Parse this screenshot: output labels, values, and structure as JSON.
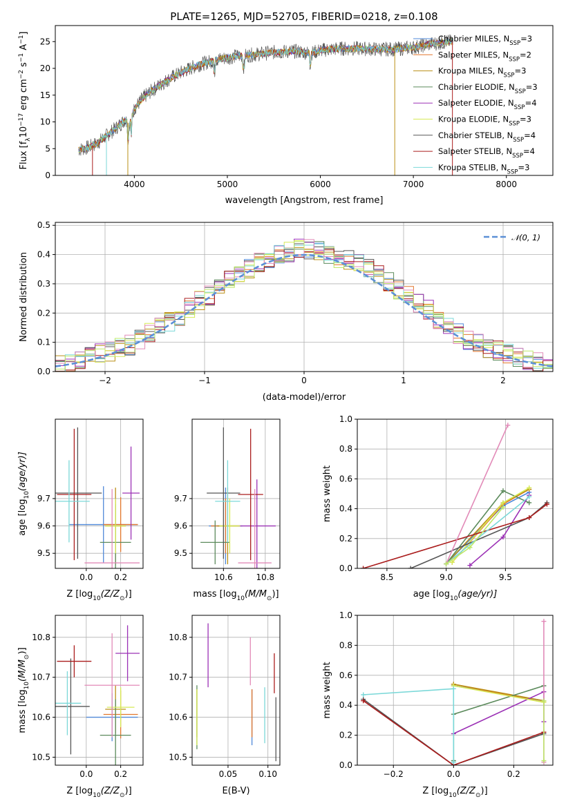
{
  "figure": {
    "title": "PLATE=1265, MJD=52705, FIBERID=0218, z=0.108"
  },
  "colors": {
    "chabrier_miles": "#4f88d8",
    "salpeter_miles": "#e2762b",
    "kroupa_miles": "#ba8f15",
    "chabrier_elodie": "#5b8a5b",
    "salpeter_elodie": "#9b30b5",
    "kroupa_elodie": "#d6ea55",
    "chabrier_stelib": "#555555",
    "salpeter_stelib": "#aa1c1c",
    "kroupa_stelib": "#7ad8d8",
    "pink": "#e28ab8",
    "lime": "#bde86a",
    "gaussian": "#5b8fd6"
  },
  "chart_data": [
    {
      "id": "spectrum",
      "type": "line",
      "title": "PLATE=1265, MJD=52705, FIBERID=0218, z=0.108",
      "xlabel": "wavelength [Angstrom, rest frame]",
      "ylabel_main": "Flux [f",
      "ylabel_sub": "λ",
      "ylabel_mid": "10",
      "ylabel_sup": "−17",
      "ylabel_rest": " erg cm",
      "ylabel_sup2": "−2",
      "ylabel_rest2": " s",
      "ylabel_sup3": "−1",
      "ylabel_rest3": " A",
      "ylabel_sup4": "−1",
      "ylabel_end": "]",
      "xlim": [
        3150,
        8500
      ],
      "ylim": [
        0,
        28
      ],
      "xticks": [
        4000,
        5000,
        6000,
        7000,
        8000
      ],
      "yticks": [
        0,
        5,
        10,
        15,
        20,
        25
      ],
      "grid": false,
      "legend_position": "top-right",
      "continuum": {
        "x": [
          3400,
          3500,
          3600,
          3700,
          3800,
          3900,
          3950,
          4000,
          4100,
          4200,
          4300,
          4400,
          4500,
          4600,
          4700,
          4800,
          4900,
          5000,
          5100,
          5200,
          5300,
          5400,
          5500,
          5600,
          5700,
          5800,
          5900,
          6000,
          6200,
          6400,
          6600,
          6800,
          7000,
          7200,
          7400
        ],
        "y": [
          4.8,
          5.2,
          6.0,
          7.4,
          8.8,
          10.4,
          9.5,
          12.5,
          14.6,
          16.0,
          17.2,
          18.3,
          19.2,
          20.0,
          20.7,
          21.2,
          21.7,
          22.0,
          22.3,
          22.4,
          22.6,
          22.8,
          23.0,
          23.1,
          23.2,
          23.1,
          22.8,
          23.4,
          23.7,
          23.7,
          23.6,
          23.6,
          23.9,
          24.6,
          25.0
        ]
      },
      "legend": [
        {
          "label": "Chabrier MILES, N",
          "sub": "SSP",
          "tail": "=3",
          "color_key": "chabrier_miles"
        },
        {
          "label": "Salpeter MILES, N",
          "sub": "SSP",
          "tail": "=2",
          "color_key": "salpeter_miles"
        },
        {
          "label": "Kroupa MILES, N",
          "sub": "SSP",
          "tail": "=3",
          "color_key": "kroupa_miles"
        },
        {
          "label": "Chabrier ELODIE, N",
          "sub": "SSP",
          "tail": "=3",
          "color_key": "chabrier_elodie"
        },
        {
          "label": "Salpeter ELODIE, N",
          "sub": "SSP",
          "tail": "=4",
          "color_key": "salpeter_elodie"
        },
        {
          "label": "Kroupa ELODIE, N",
          "sub": "SSP",
          "tail": "=3",
          "color_key": "kroupa_elodie"
        },
        {
          "label": "Chabrier STELIB, N",
          "sub": "SSP",
          "tail": "=4",
          "color_key": "chabrier_stelib"
        },
        {
          "label": "Salpeter STELIB, N",
          "sub": "SSP",
          "tail": "=4",
          "color_key": "salpeter_stelib"
        },
        {
          "label": "Kroupa STELIB, N",
          "sub": "SSP",
          "tail": "=3",
          "color_key": "kroupa_stelib"
        }
      ]
    },
    {
      "id": "residuals",
      "type": "histogram",
      "xlabel": "(data-model)/error",
      "ylabel": "Normed distribution",
      "xlim": [
        -2.5,
        2.5
      ],
      "ylim": [
        0,
        0.51
      ],
      "xticks": [
        -2,
        -1,
        0,
        1,
        2
      ],
      "yticks": [
        0.0,
        0.1,
        0.2,
        0.3,
        0.4,
        0.5
      ],
      "grid": true,
      "bins": [
        -2.5,
        -2.4,
        -2.3,
        -2.2,
        -2.1,
        -2.0,
        -1.9,
        -1.8,
        -1.7,
        -1.6,
        -1.5,
        -1.4,
        -1.3,
        -1.2,
        -1.1,
        -1.0,
        -0.9,
        -0.8,
        -0.7,
        -0.6,
        -0.5,
        -0.4,
        -0.3,
        -0.2,
        -0.1,
        0.0,
        0.1,
        0.2,
        0.3,
        0.4,
        0.5,
        0.6,
        0.7,
        0.8,
        0.9,
        1.0,
        1.1,
        1.2,
        1.3,
        1.4,
        1.5,
        1.6,
        1.7,
        1.8,
        1.9,
        2.0,
        2.1,
        2.2,
        2.3,
        2.4,
        2.5
      ],
      "base_heights": [
        0.02,
        0.03,
        0.04,
        0.05,
        0.06,
        0.07,
        0.08,
        0.09,
        0.11,
        0.13,
        0.15,
        0.17,
        0.19,
        0.22,
        0.24,
        0.26,
        0.29,
        0.31,
        0.33,
        0.35,
        0.37,
        0.38,
        0.4,
        0.41,
        0.42,
        0.42,
        0.41,
        0.4,
        0.39,
        0.38,
        0.37,
        0.35,
        0.33,
        0.31,
        0.28,
        0.26,
        0.23,
        0.21,
        0.18,
        0.15,
        0.13,
        0.11,
        0.1,
        0.08,
        0.07,
        0.06,
        0.05,
        0.04,
        0.03,
        0.02
      ],
      "gaussian_legend": "𝒩(0, 1)",
      "series_color_keys": [
        "chabrier_miles",
        "salpeter_miles",
        "kroupa_miles",
        "chabrier_elodie",
        "salpeter_elodie",
        "kroupa_elodie",
        "chabrier_stelib",
        "salpeter_stelib",
        "kroupa_stelib",
        "pink",
        "lime"
      ]
    },
    {
      "id": "age_vs_Z",
      "type": "errorbar",
      "xlabel": "Z [log",
      "xlabel_sub": "10",
      "xlabel_rest": "(Z/Z",
      "xlabel_sub2": "⊙",
      "xlabel_end": ")]",
      "ylabel": "age  [log",
      "ylabel_sub": "10",
      "ylabel_rest": "(age/yr)]",
      "xlim": [
        -0.18,
        0.33
      ],
      "ylim": [
        9.445,
        9.99
      ],
      "xticks": [
        0.0,
        0.2
      ],
      "yticks": [
        9.5,
        9.6,
        9.7
      ],
      "grid": true,
      "points": [
        {
          "x": 0.1,
          "xerr": 0.2,
          "y": 9.605,
          "yerr": 0.14,
          "color_key": "chabrier_miles"
        },
        {
          "x": 0.2,
          "xerr": 0.1,
          "y": 9.605,
          "yerr": 0.1,
          "color_key": "salpeter_miles"
        },
        {
          "x": 0.17,
          "xerr": 0.06,
          "y": 9.6,
          "yerr": 0.14,
          "color_key": "kroupa_miles"
        },
        {
          "x": 0.17,
          "xerr": 0.09,
          "y": 9.54,
          "yerr": 0.14,
          "color_key": "chabrier_elodie"
        },
        {
          "x": 0.26,
          "xerr": 0.05,
          "y": 9.72,
          "yerr": 0.17,
          "color_key": "salpeter_elodie"
        },
        {
          "x": 0.17,
          "xerr": 0.06,
          "y": 9.6,
          "yerr": 0.1,
          "color_key": "kroupa_elodie"
        },
        {
          "x": -0.05,
          "xerr": 0.14,
          "y": 9.72,
          "yerr": 0.24,
          "color_key": "chabrier_stelib"
        },
        {
          "x": -0.07,
          "xerr": 0.1,
          "y": 9.715,
          "yerr": 0.24,
          "color_key": "salpeter_stelib"
        },
        {
          "x": -0.1,
          "xerr": 0.12,
          "y": 9.69,
          "yerr": 0.15,
          "color_key": "kroupa_stelib"
        },
        {
          "x": 0.15,
          "xerr": 0.16,
          "y": 9.465,
          "yerr": 0.27,
          "color_key": "pink"
        }
      ]
    },
    {
      "id": "age_vs_mass",
      "type": "errorbar",
      "xlabel": "mass [log",
      "xlabel_sub": "10",
      "xlabel_rest": "(M/M",
      "xlabel_sub2": "⊙",
      "xlabel_end": ")]",
      "xlim": [
        10.45,
        10.87
      ],
      "ylim": [
        9.445,
        9.99
      ],
      "xticks": [
        10.6,
        10.8
      ],
      "yticks": [
        9.5,
        9.6,
        9.7
      ],
      "grid": true,
      "points": [
        {
          "x": 10.61,
          "xerr": 0.08,
          "y": 9.6,
          "yerr": 0.14,
          "color_key": "chabrier_miles"
        },
        {
          "x": 10.61,
          "xerr": 0.07,
          "y": 9.6,
          "yerr": 0.1,
          "color_key": "salpeter_miles"
        },
        {
          "x": 10.62,
          "xerr": 0.05,
          "y": 9.6,
          "yerr": 0.14,
          "color_key": "kroupa_miles"
        },
        {
          "x": 10.56,
          "xerr": 0.07,
          "y": 9.54,
          "yerr": 0.08,
          "color_key": "chabrier_elodie"
        },
        {
          "x": 10.76,
          "xerr": 0.09,
          "y": 9.6,
          "yerr": 0.17,
          "color_key": "salpeter_elodie"
        },
        {
          "x": 10.63,
          "xerr": 0.05,
          "y": 9.6,
          "yerr": 0.1,
          "color_key": "kroupa_elodie"
        },
        {
          "x": 10.6,
          "xerr": 0.08,
          "y": 9.72,
          "yerr": 0.24,
          "color_key": "chabrier_stelib"
        },
        {
          "x": 10.73,
          "xerr": 0.06,
          "y": 9.715,
          "yerr": 0.24,
          "color_key": "salpeter_stelib"
        },
        {
          "x": 10.62,
          "xerr": 0.06,
          "y": 9.69,
          "yerr": 0.15,
          "color_key": "kroupa_stelib"
        },
        {
          "x": 10.75,
          "xerr": 0.08,
          "y": 9.465,
          "yerr": 0.27,
          "color_key": "pink"
        }
      ]
    },
    {
      "id": "weight_vs_age",
      "type": "line",
      "xlabel": "age  [log",
      "xlabel_sub": "10",
      "xlabel_rest": "(age/yr)]",
      "ylabel": "mass weight",
      "xlim": [
        8.25,
        9.9
      ],
      "ylim": [
        0,
        1.0
      ],
      "xticks": [
        8.5,
        9.0,
        9.5
      ],
      "yticks": [
        0.0,
        0.2,
        0.4,
        0.6,
        0.8,
        1.0
      ],
      "grid": true,
      "series": [
        {
          "x": [
            9.0,
            9.48,
            9.7
          ],
          "y": [
            0.03,
            0.42,
            0.51
          ],
          "color_key": "chabrier_miles"
        },
        {
          "x": [
            9.05,
            9.48,
            9.7
          ],
          "y": [
            0.04,
            0.43,
            0.53
          ],
          "color_key": "salpeter_miles"
        },
        {
          "x": [
            9.0,
            9.48,
            9.7
          ],
          "y": [
            0.03,
            0.44,
            0.53
          ],
          "color_key": "kroupa_miles"
        },
        {
          "x": [
            9.0,
            9.48,
            9.7
          ],
          "y": [
            0.03,
            0.52,
            0.44
          ],
          "color_key": "chabrier_elodie"
        },
        {
          "x": [
            9.2,
            9.48,
            9.7
          ],
          "y": [
            0.02,
            0.21,
            0.49
          ],
          "color_key": "salpeter_elodie"
        },
        {
          "x": [
            9.05,
            9.48,
            9.7
          ],
          "y": [
            0.04,
            0.44,
            0.54
          ],
          "color_key": "kroupa_elodie"
        },
        {
          "x": [
            8.7,
            9.7,
            9.85
          ],
          "y": [
            0.0,
            0.34,
            0.44
          ],
          "color_key": "chabrier_stelib"
        },
        {
          "x": [
            8.3,
            9.7,
            9.85
          ],
          "y": [
            0.0,
            0.34,
            0.43
          ],
          "color_key": "salpeter_stelib"
        },
        {
          "x": [
            9.0,
            9.7
          ],
          "y": [
            0.03,
            0.48
          ],
          "color_key": "kroupa_stelib"
        },
        {
          "x": [
            9.0,
            9.52
          ],
          "y": [
            0.03,
            0.96
          ],
          "color_key": "pink"
        },
        {
          "x": [
            9.0,
            9.2,
            9.48
          ],
          "y": [
            0.03,
            0.14,
            0.41
          ],
          "color_key": "lime"
        }
      ]
    },
    {
      "id": "mass_vs_Z",
      "type": "errorbar",
      "xlabel": "Z [log",
      "xlabel_sub": "10",
      "xlabel_rest": "(Z/Z",
      "xlabel_sub2": "⊙",
      "xlabel_end": ")]",
      "ylabel": "mass [log",
      "ylabel_sub": "10",
      "ylabel_rest": "(M/M",
      "ylabel_sub2": "⊙",
      "ylabel_end": ")]",
      "xlim": [
        -0.18,
        0.33
      ],
      "ylim": [
        10.48,
        10.855
      ],
      "xticks": [
        0.0,
        0.2
      ],
      "yticks": [
        10.5,
        10.6,
        10.7,
        10.8
      ],
      "grid": true,
      "points": [
        {
          "x": 0.15,
          "xerr": 0.15,
          "y": 10.6,
          "yerr": 0.06,
          "color_key": "chabrier_miles"
        },
        {
          "x": 0.2,
          "xerr": 0.1,
          "y": 10.607,
          "yerr": 0.06,
          "color_key": "salpeter_miles"
        },
        {
          "x": 0.17,
          "xerr": 0.06,
          "y": 10.62,
          "yerr": 0.06,
          "color_key": "kroupa_miles"
        },
        {
          "x": 0.17,
          "xerr": 0.09,
          "y": 10.555,
          "yerr": 0.09,
          "color_key": "chabrier_elodie"
        },
        {
          "x": 0.24,
          "xerr": 0.07,
          "y": 10.76,
          "yerr": 0.07,
          "color_key": "salpeter_elodie"
        },
        {
          "x": 0.2,
          "xerr": 0.08,
          "y": 10.625,
          "yerr": 0.05,
          "color_key": "kroupa_elodie"
        },
        {
          "x": -0.09,
          "xerr": 0.11,
          "y": 10.627,
          "yerr": 0.12,
          "color_key": "chabrier_stelib"
        },
        {
          "x": -0.07,
          "xerr": 0.1,
          "y": 10.74,
          "yerr": 0.04,
          "color_key": "salpeter_stelib"
        },
        {
          "x": -0.11,
          "xerr": 0.08,
          "y": 10.635,
          "yerr": 0.08,
          "color_key": "kroupa_stelib"
        },
        {
          "x": 0.15,
          "xerr": 0.16,
          "y": 10.68,
          "yerr": 0.13,
          "color_key": "pink"
        }
      ]
    },
    {
      "id": "mass_vs_ebv",
      "type": "errorbar",
      "xlabel": "E(B-V)",
      "xlim": [
        0.005,
        0.115
      ],
      "ylim": [
        10.48,
        10.855
      ],
      "xticks": [
        0.05,
        0.1
      ],
      "yticks": [
        10.5,
        10.6,
        10.7,
        10.8
      ],
      "grid": true,
      "points": [
        {
          "x": 0.08,
          "xerr": 0,
          "y": 10.6,
          "yerr": 0.07,
          "color_key": "chabrier_miles"
        },
        {
          "x": 0.08,
          "xerr": 0,
          "y": 10.61,
          "yerr": 0.06,
          "color_key": "salpeter_miles"
        },
        {
          "x": 0.011,
          "xerr": 0,
          "y": 10.61,
          "yerr": 0.06,
          "color_key": "kroupa_miles"
        },
        {
          "x": 0.011,
          "xerr": 0,
          "y": 10.6,
          "yerr": 0.08,
          "color_key": "chabrier_elodie"
        },
        {
          "x": 0.025,
          "xerr": 0,
          "y": 10.755,
          "yerr": 0.08,
          "color_key": "salpeter_elodie"
        },
        {
          "x": 0.011,
          "xerr": 0,
          "y": 10.6,
          "yerr": 0.07,
          "color_key": "kroupa_elodie"
        },
        {
          "x": 0.11,
          "xerr": 0,
          "y": 10.57,
          "yerr": 0.08,
          "color_key": "chabrier_stelib"
        },
        {
          "x": 0.108,
          "xerr": 0,
          "y": 10.71,
          "yerr": 0.05,
          "color_key": "salpeter_stelib"
        },
        {
          "x": 0.096,
          "xerr": 0,
          "y": 10.605,
          "yerr": 0.07,
          "color_key": "kroupa_stelib"
        },
        {
          "x": 0.078,
          "xerr": 0,
          "y": 10.74,
          "yerr": 0.06,
          "color_key": "pink"
        }
      ]
    },
    {
      "id": "weight_vs_Z",
      "type": "line",
      "xlabel": "Z [log",
      "xlabel_sub": "10",
      "xlabel_rest": "(Z/Z",
      "xlabel_sub2": "⊙",
      "xlabel_end": ")]",
      "ylabel": "mass weight",
      "xlim": [
        -0.32,
        0.33
      ],
      "ylim": [
        0,
        1.0
      ],
      "xticks": [
        -0.2,
        0.0,
        0.2
      ],
      "yticks": [
        0.0,
        0.2,
        0.4,
        0.6,
        0.8,
        1.0
      ],
      "grid": true,
      "series": [
        {
          "x": [
            0.0,
            0.3
          ],
          "y": [
            0.53,
            0.43
          ],
          "color_key": "chabrier_miles"
        },
        {
          "x": [
            0.0,
            0.3
          ],
          "y": [
            0.54,
            0.42
          ],
          "color_key": "salpeter_miles"
        },
        {
          "x": [
            0.0,
            0.3
          ],
          "y": [
            0.54,
            0.43
          ],
          "color_key": "kroupa_miles"
        },
        {
          "x": [
            0.0,
            0.0,
            0.3
          ],
          "y": [
            0.03,
            0.34,
            0.53
          ],
          "color_key": "chabrier_elodie"
        },
        {
          "x": [
            0.0,
            0.3,
            0.3
          ],
          "y": [
            0.21,
            0.49,
            0.29
          ],
          "color_key": "salpeter_elodie"
        },
        {
          "x": [
            0.0,
            0.3
          ],
          "y": [
            0.53,
            0.42
          ],
          "color_key": "kroupa_elodie"
        },
        {
          "x": [
            -0.3,
            0.0,
            0.3
          ],
          "y": [
            0.44,
            0.0,
            0.21
          ],
          "color_key": "chabrier_stelib"
        },
        {
          "x": [
            -0.3,
            0.0,
            0.3
          ],
          "y": [
            0.43,
            0.0,
            0.22
          ],
          "color_key": "salpeter_stelib"
        },
        {
          "x": [
            -0.3,
            0.0,
            0.0
          ],
          "y": [
            0.47,
            0.51,
            0.02
          ],
          "color_key": "kroupa_stelib"
        },
        {
          "x": [
            0.3,
            0.3
          ],
          "y": [
            0.96,
            0.02
          ],
          "color_key": "pink"
        },
        {
          "x": [
            0.3,
            0.3
          ],
          "y": [
            0.43,
            0.03
          ],
          "color_key": "lime"
        }
      ]
    }
  ]
}
